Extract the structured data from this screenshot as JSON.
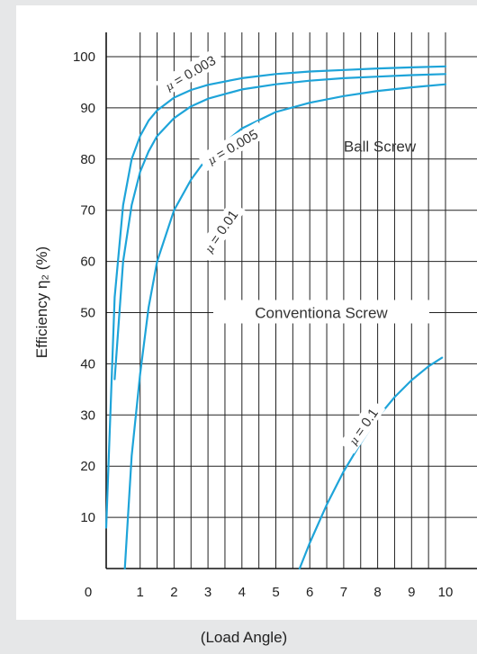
{
  "chart_data": {
    "type": "line",
    "ylabel": "Efficiency η₂ (%)",
    "xlabel": "(Load Angle)",
    "xlim": [
      0,
      10
    ],
    "ylim": [
      0,
      100
    ],
    "x_ticks": [
      "0",
      "1",
      "2",
      "3",
      "4",
      "5",
      "6",
      "7",
      "8",
      "9",
      "10"
    ],
    "y_ticks": [
      "10",
      "20",
      "30",
      "40",
      "50",
      "60",
      "70",
      "80",
      "90",
      "100"
    ],
    "grid": true,
    "line_color": "#1ea4d9",
    "annotations": [
      "Ball Screw",
      "Conventiona Screw"
    ],
    "series": [
      {
        "name": "μ = 0.003",
        "label_text": "= 0.003",
        "x": [
          0,
          0.25,
          0.5,
          0.75,
          1,
          1.25,
          1.5,
          2,
          2.5,
          3,
          4,
          5,
          6,
          7,
          8,
          9,
          10
        ],
        "y": [
          8,
          53,
          71,
          80,
          84.5,
          87.5,
          89.5,
          92,
          93.5,
          94.5,
          95.8,
          96.6,
          97.1,
          97.4,
          97.7,
          97.9,
          98.1
        ]
      },
      {
        "name": "μ = 0.005",
        "label_text": "= 0.005",
        "x": [
          0.25,
          0.5,
          0.75,
          1,
          1.25,
          1.5,
          2,
          2.5,
          3,
          4,
          5,
          6,
          7,
          8,
          9,
          10
        ],
        "y": [
          37,
          60,
          71,
          77.5,
          81.5,
          84.5,
          88,
          90.3,
          91.8,
          93.6,
          94.6,
          95.3,
          95.8,
          96.1,
          96.4,
          96.6
        ]
      },
      {
        "name": "μ = 0.01",
        "label_text": "= 0.01",
        "x": [
          0.55,
          0.75,
          1,
          1.25,
          1.5,
          2,
          2.5,
          3,
          4,
          5,
          6,
          7,
          8,
          9,
          10
        ],
        "y": [
          0,
          22,
          38,
          51,
          60,
          70,
          76,
          80.5,
          86,
          89.2,
          91,
          92.3,
          93.3,
          94,
          94.6
        ]
      },
      {
        "name": "μ = 0.1",
        "label_text": "= 0.1",
        "x": [
          5.7,
          6,
          6.5,
          7,
          7.5,
          8,
          8.5,
          9,
          9.5,
          9.9
        ],
        "y": [
          0,
          5,
          12.5,
          19,
          24.5,
          29.5,
          33.5,
          36.8,
          39.5,
          41.2
        ]
      }
    ]
  }
}
